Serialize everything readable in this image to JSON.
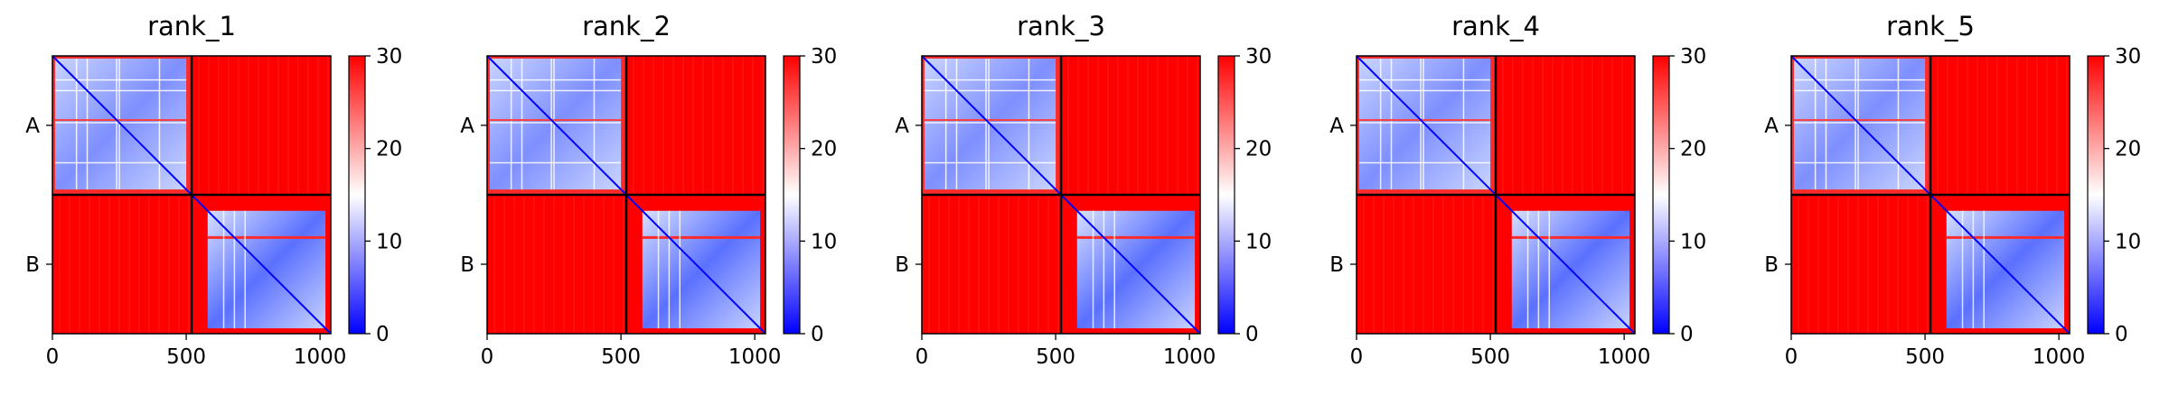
{
  "chart_data": [
    {
      "type": "heatmap",
      "title": "rank_1",
      "chains": [
        "A",
        "B"
      ],
      "chain_boundary": 520,
      "x_ticks": [
        0,
        500,
        1000
      ],
      "xlim": [
        0,
        1040
      ],
      "colorbar": {
        "range": [
          0,
          30
        ],
        "ticks": [
          0,
          10,
          20,
          30
        ],
        "colormap": "bwr"
      },
      "intra_chain_error": 8,
      "inter_chain_error": 30
    },
    {
      "type": "heatmap",
      "title": "rank_2",
      "chains": [
        "A",
        "B"
      ],
      "chain_boundary": 520,
      "x_ticks": [
        0,
        500,
        1000
      ],
      "xlim": [
        0,
        1040
      ],
      "colorbar": {
        "range": [
          0,
          30
        ],
        "ticks": [
          0,
          10,
          20,
          30
        ],
        "colormap": "bwr"
      },
      "intra_chain_error": 8,
      "inter_chain_error": 30
    },
    {
      "type": "heatmap",
      "title": "rank_3",
      "chains": [
        "A",
        "B"
      ],
      "chain_boundary": 520,
      "x_ticks": [
        0,
        500,
        1000
      ],
      "xlim": [
        0,
        1040
      ],
      "colorbar": {
        "range": [
          0,
          30
        ],
        "ticks": [
          0,
          10,
          20,
          30
        ],
        "colormap": "bwr"
      },
      "intra_chain_error": 8,
      "inter_chain_error": 30
    },
    {
      "type": "heatmap",
      "title": "rank_4",
      "chains": [
        "A",
        "B"
      ],
      "chain_boundary": 520,
      "x_ticks": [
        0,
        500,
        1000
      ],
      "xlim": [
        0,
        1040
      ],
      "colorbar": {
        "range": [
          0,
          30
        ],
        "ticks": [
          0,
          10,
          20,
          30
        ],
        "colormap": "bwr"
      },
      "intra_chain_error": 8,
      "inter_chain_error": 30
    },
    {
      "type": "heatmap",
      "title": "rank_5",
      "chains": [
        "A",
        "B"
      ],
      "chain_boundary": 520,
      "x_ticks": [
        0,
        500,
        1000
      ],
      "xlim": [
        0,
        1040
      ],
      "colorbar": {
        "range": [
          0,
          30
        ],
        "ticks": [
          0,
          10,
          20,
          30
        ],
        "colormap": "bwr"
      },
      "intra_chain_error": 8,
      "inter_chain_error": 30
    }
  ],
  "colors": {
    "low": "#0000ff",
    "mid": "#ffffff",
    "high": "#ff0000"
  }
}
